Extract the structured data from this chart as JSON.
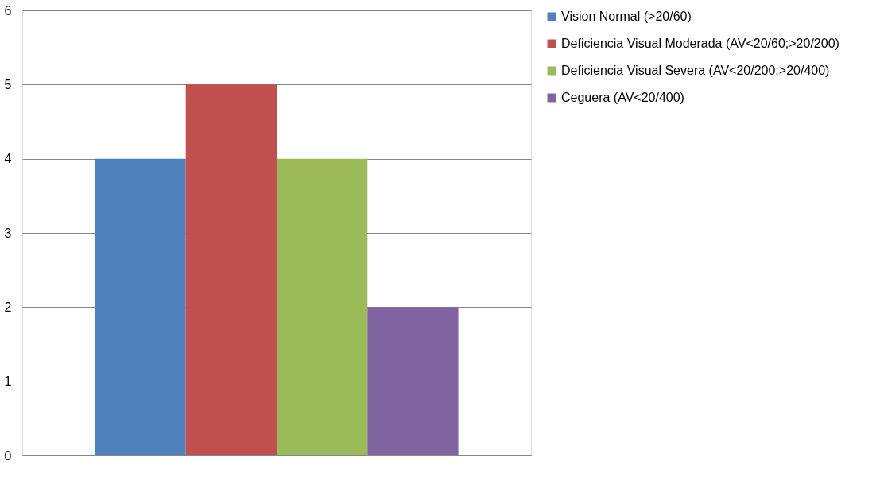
{
  "chart_data": {
    "type": "bar",
    "categories": [
      null
    ],
    "series": [
      {
        "name": "Vision Normal (>20/60)",
        "color": "#4f81bd",
        "values": [
          4
        ]
      },
      {
        "name": "Deficiencia Visual Moderada (AV<20/60;>20/200)",
        "color": "#c0504d",
        "values": [
          5
        ]
      },
      {
        "name": "Deficiencia Visual Severa (AV<20/200;>20/400)",
        "color": "#9bbb59",
        "values": [
          4
        ]
      },
      {
        "name": "Ceguera (AV<20/400)",
        "color": "#8064a2",
        "values": [
          2
        ]
      }
    ],
    "ylim": [
      0,
      6
    ],
    "yticks": [
      0,
      1,
      2,
      3,
      4,
      5,
      6
    ],
    "grid": "y",
    "legend": "right"
  }
}
